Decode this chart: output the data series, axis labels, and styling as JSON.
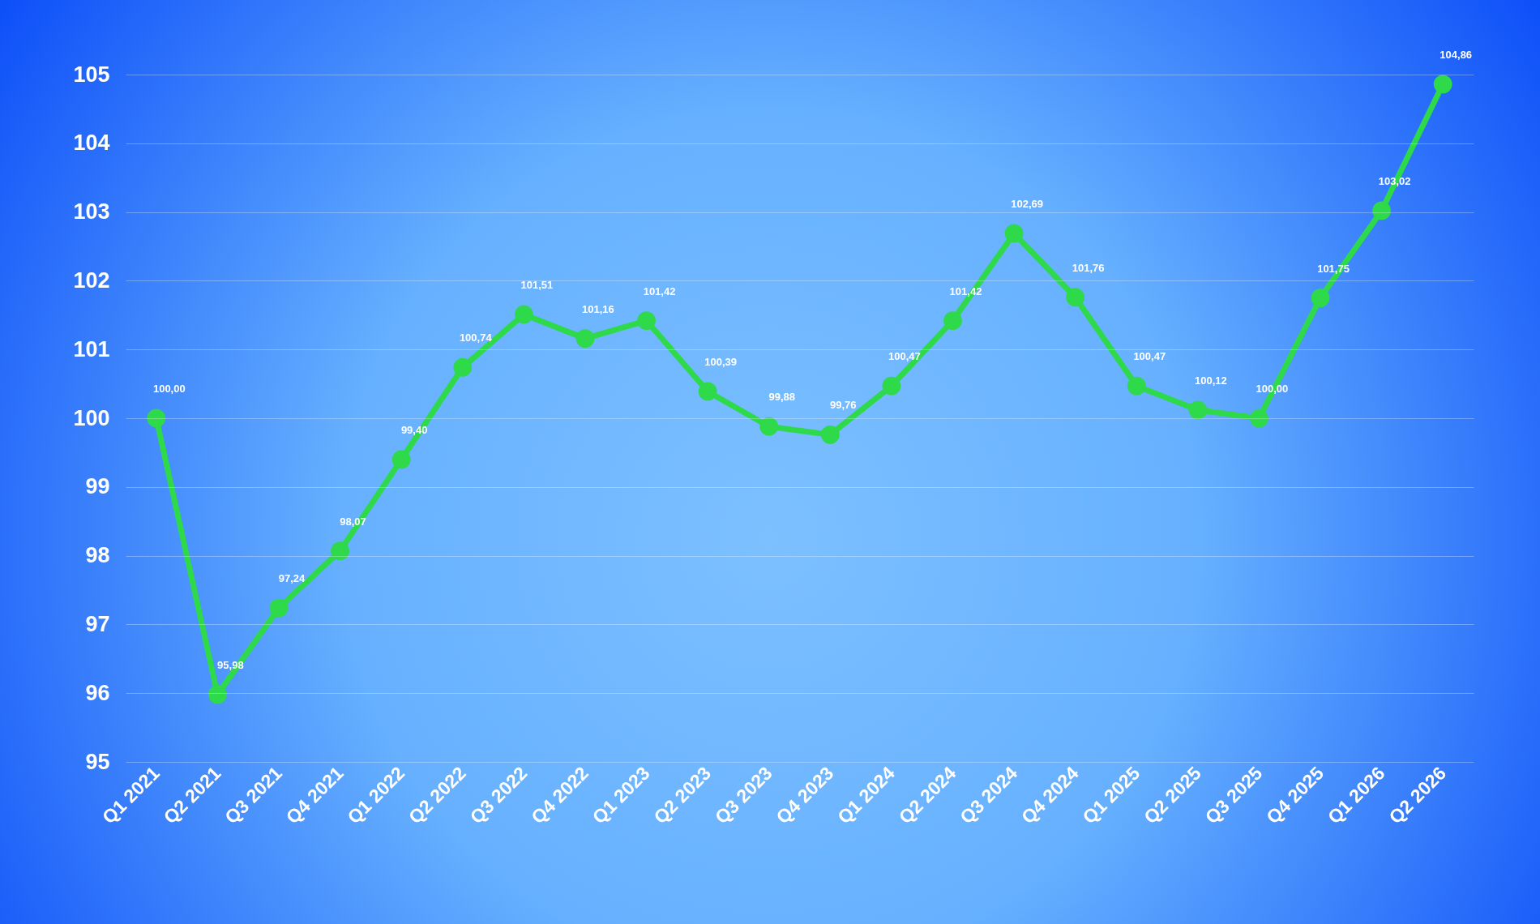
{
  "chart_data": {
    "type": "line",
    "categories": [
      "Q1 2021",
      "Q2 2021",
      "Q3 2021",
      "Q4 2021",
      "Q1 2022",
      "Q2 2022",
      "Q3 2022",
      "Q4 2022",
      "Q1 2023",
      "Q2 2023",
      "Q3 2023",
      "Q4 2023",
      "Q1 2024",
      "Q2 2024",
      "Q3 2024",
      "Q4 2024",
      "Q1 2025",
      "Q2 2025",
      "Q3 2025",
      "Q4 2025",
      "Q1 2026",
      "Q2 2026"
    ],
    "series": [
      {
        "color": "#2ed94a",
        "values": [
          100.0,
          95.98,
          97.24,
          98.07,
          99.4,
          100.74,
          101.51,
          101.16,
          101.42,
          100.39,
          99.88,
          99.76,
          100.47,
          101.42,
          102.69,
          101.76,
          100.47,
          100.12,
          100.0,
          101.75,
          103.02,
          104.86
        ],
        "value_labels": [
          "100,00",
          "95,98",
          "97,24",
          "98,07",
          "99,40",
          "100,74",
          "101,51",
          "101,16",
          "101,42",
          "100,39",
          "99,88",
          "99,76",
          "100,47",
          "101,42",
          "102,69",
          "101,76",
          "100,47",
          "100,12",
          "100,00",
          "101,75",
          "103,02",
          "104,86"
        ]
      }
    ],
    "ylim": [
      95,
      105
    ],
    "yticks": [
      95,
      96,
      97,
      98,
      99,
      100,
      101,
      102,
      103,
      104,
      105
    ],
    "grid": "y",
    "marker": "circle",
    "line_style": "solid"
  }
}
